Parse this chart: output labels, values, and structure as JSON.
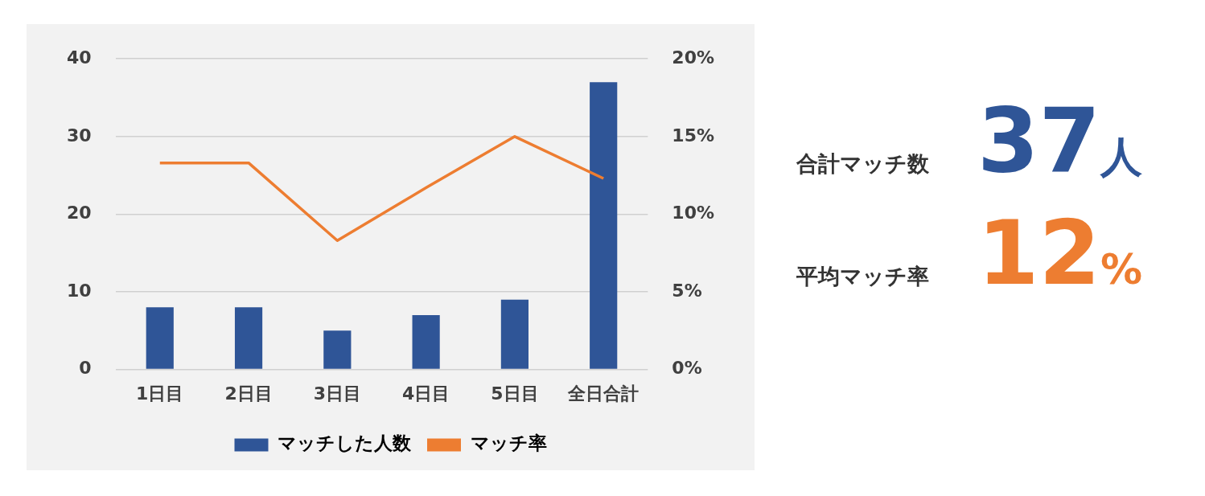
{
  "chart_data": [
    {
      "type": "bar",
      "categories": [
        "1日目",
        "2日目",
        "3日目",
        "4日目",
        "5日目",
        "全日合計"
      ],
      "series": [
        {
          "name": "マッチした人数",
          "color": "#2f5597",
          "values": [
            8,
            8,
            5,
            7,
            9,
            37
          ]
        },
        {
          "name": "マッチ率",
          "color": "#ed7d31",
          "type": "line",
          "axis": "y2",
          "values": [
            13.3,
            13.3,
            8.3,
            11.7,
            15.0,
            12.3
          ]
        }
      ],
      "ylim": [
        0,
        40
      ],
      "yticks": [
        0,
        10,
        20,
        30,
        40
      ],
      "y2lim": [
        0,
        20
      ],
      "y2ticks": [
        {
          "value": 0,
          "label": "0%"
        },
        {
          "value": 5,
          "label": "5%"
        },
        {
          "value": 10,
          "label": "10%"
        },
        {
          "value": 15,
          "label": "15%"
        },
        {
          "value": 20,
          "label": "20%"
        }
      ],
      "grid": "y",
      "legend": "bottom",
      "marker": "none"
    },
    {
      "type": "other",
      "annotations": [
        "合計マッチ数",
        "37人",
        "平均マッチ率",
        "12%"
      ]
    }
  ]
}
